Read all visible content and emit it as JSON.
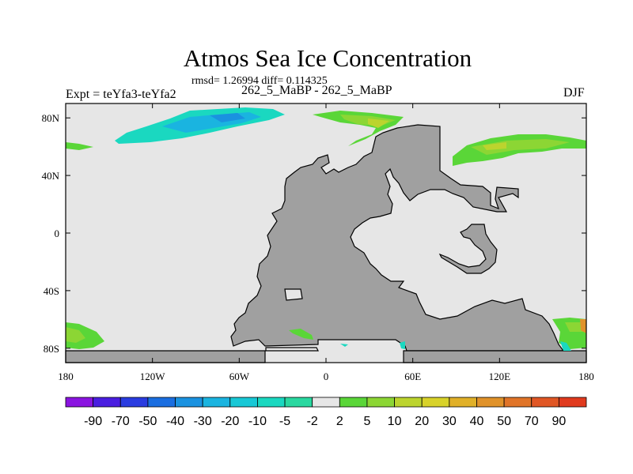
{
  "header": {
    "title": "Atmos Sea Ice Concentration",
    "stats": "rmsd= 1.26994 diff= 0.114325",
    "left_label": "Expt = teYfa3-teYfa2",
    "center_label": "262_5_MaBP - 262_5_MaBP",
    "right_label": "DJF"
  },
  "chart_data": {
    "type": "heatmap",
    "title": "Atmos Sea Ice Concentration",
    "xlim": [
      -180,
      180
    ],
    "ylim": [
      -90,
      90
    ],
    "x_ticks": [
      {
        "value": -180,
        "label": "180"
      },
      {
        "value": -120,
        "label": "120W"
      },
      {
        "value": -60,
        "label": "60W"
      },
      {
        "value": 0,
        "label": "0"
      },
      {
        "value": 60,
        "label": "60E"
      },
      {
        "value": 120,
        "label": "120E"
      },
      {
        "value": 180,
        "label": "180"
      }
    ],
    "y_ticks": [
      {
        "value": 80,
        "label": "80N"
      },
      {
        "value": 40,
        "label": "40N"
      },
      {
        "value": 0,
        "label": "0"
      },
      {
        "value": -40,
        "label": "40S"
      },
      {
        "value": -80,
        "label": "80S"
      }
    ],
    "colorbar": {
      "labels": [
        "-90",
        "-70",
        "-50",
        "-40",
        "-30",
        "-20",
        "-10",
        "-5",
        "-2",
        "2",
        "5",
        "10",
        "20",
        "30",
        "40",
        "50",
        "70",
        "90"
      ],
      "colors": [
        "#8a14e0",
        "#4a1ee0",
        "#2a3ce0",
        "#1a6ee0",
        "#1a92e0",
        "#1ab4e0",
        "#18c8d6",
        "#1ad8c0",
        "#2ad8a0",
        "#e6e6e6",
        "#5ad638",
        "#8cd634",
        "#bcd42e",
        "#d8d22a",
        "#e0b028",
        "#e0922a",
        "#e07428",
        "#e05624",
        "#e03a1e"
      ]
    },
    "land_color": "#a0a0a0",
    "ocean_color": "#e6e6e6"
  }
}
